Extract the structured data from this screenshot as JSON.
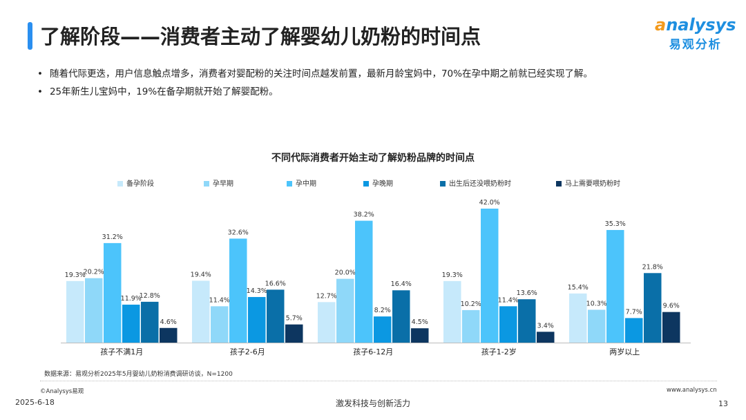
{
  "header": {
    "title": "了解阶段——消费者主动了解婴幼儿奶粉的时间点",
    "logo_en": "nalysys",
    "logo_en_initial": "a",
    "logo_cn": "易观分析"
  },
  "bullets": [
    "随着代际更迭，用户信息触点增多，消费者对婴配粉的关注时间点越发前置，最新月龄宝妈中，70%在孕中期之前就已经实现了解。",
    "25年新生儿宝妈中，19%在备孕期就开始了解婴配粉。"
  ],
  "chart_data": {
    "type": "bar",
    "title": "不同代际消费者开始主动了解奶粉品牌的时间点",
    "categories": [
      "孩子不满1月",
      "孩子2-6月",
      "孩子6-12月",
      "孩子1-2岁",
      "两岁以上"
    ],
    "series": [
      {
        "name": "备孕阶段",
        "color": "#c6e9fb",
        "values": [
          19.3,
          19.4,
          12.7,
          19.3,
          15.4
        ]
      },
      {
        "name": "孕早期",
        "color": "#8fd8f9",
        "values": [
          20.2,
          11.4,
          20.0,
          10.2,
          10.3
        ]
      },
      {
        "name": "孕中期",
        "color": "#4cc4fb",
        "values": [
          31.2,
          32.6,
          38.2,
          42.0,
          35.3
        ]
      },
      {
        "name": "孕晚期",
        "color": "#0b98e2",
        "values": [
          11.9,
          14.3,
          8.2,
          11.4,
          7.7
        ]
      },
      {
        "name": "出生后还没喂奶粉时",
        "color": "#0a6fa8",
        "values": [
          12.8,
          16.6,
          16.4,
          13.6,
          21.8
        ]
      },
      {
        "name": "马上需要喂奶粉时",
        "color": "#0d3660",
        "values": [
          4.6,
          5.7,
          4.5,
          3.4,
          9.6
        ]
      }
    ],
    "unit": "%",
    "ylim": [
      0,
      45
    ],
    "legend": "top",
    "grid": false
  },
  "footer": {
    "source": "数据来源：易观分析2025年5月婴幼儿奶粉消费调研访谈，N=1200",
    "copyright": "©Analysys易观",
    "website": "www.analysys.cn",
    "date": "2025-6-18",
    "slogan": "激发科技与创新活力",
    "page": "13"
  }
}
